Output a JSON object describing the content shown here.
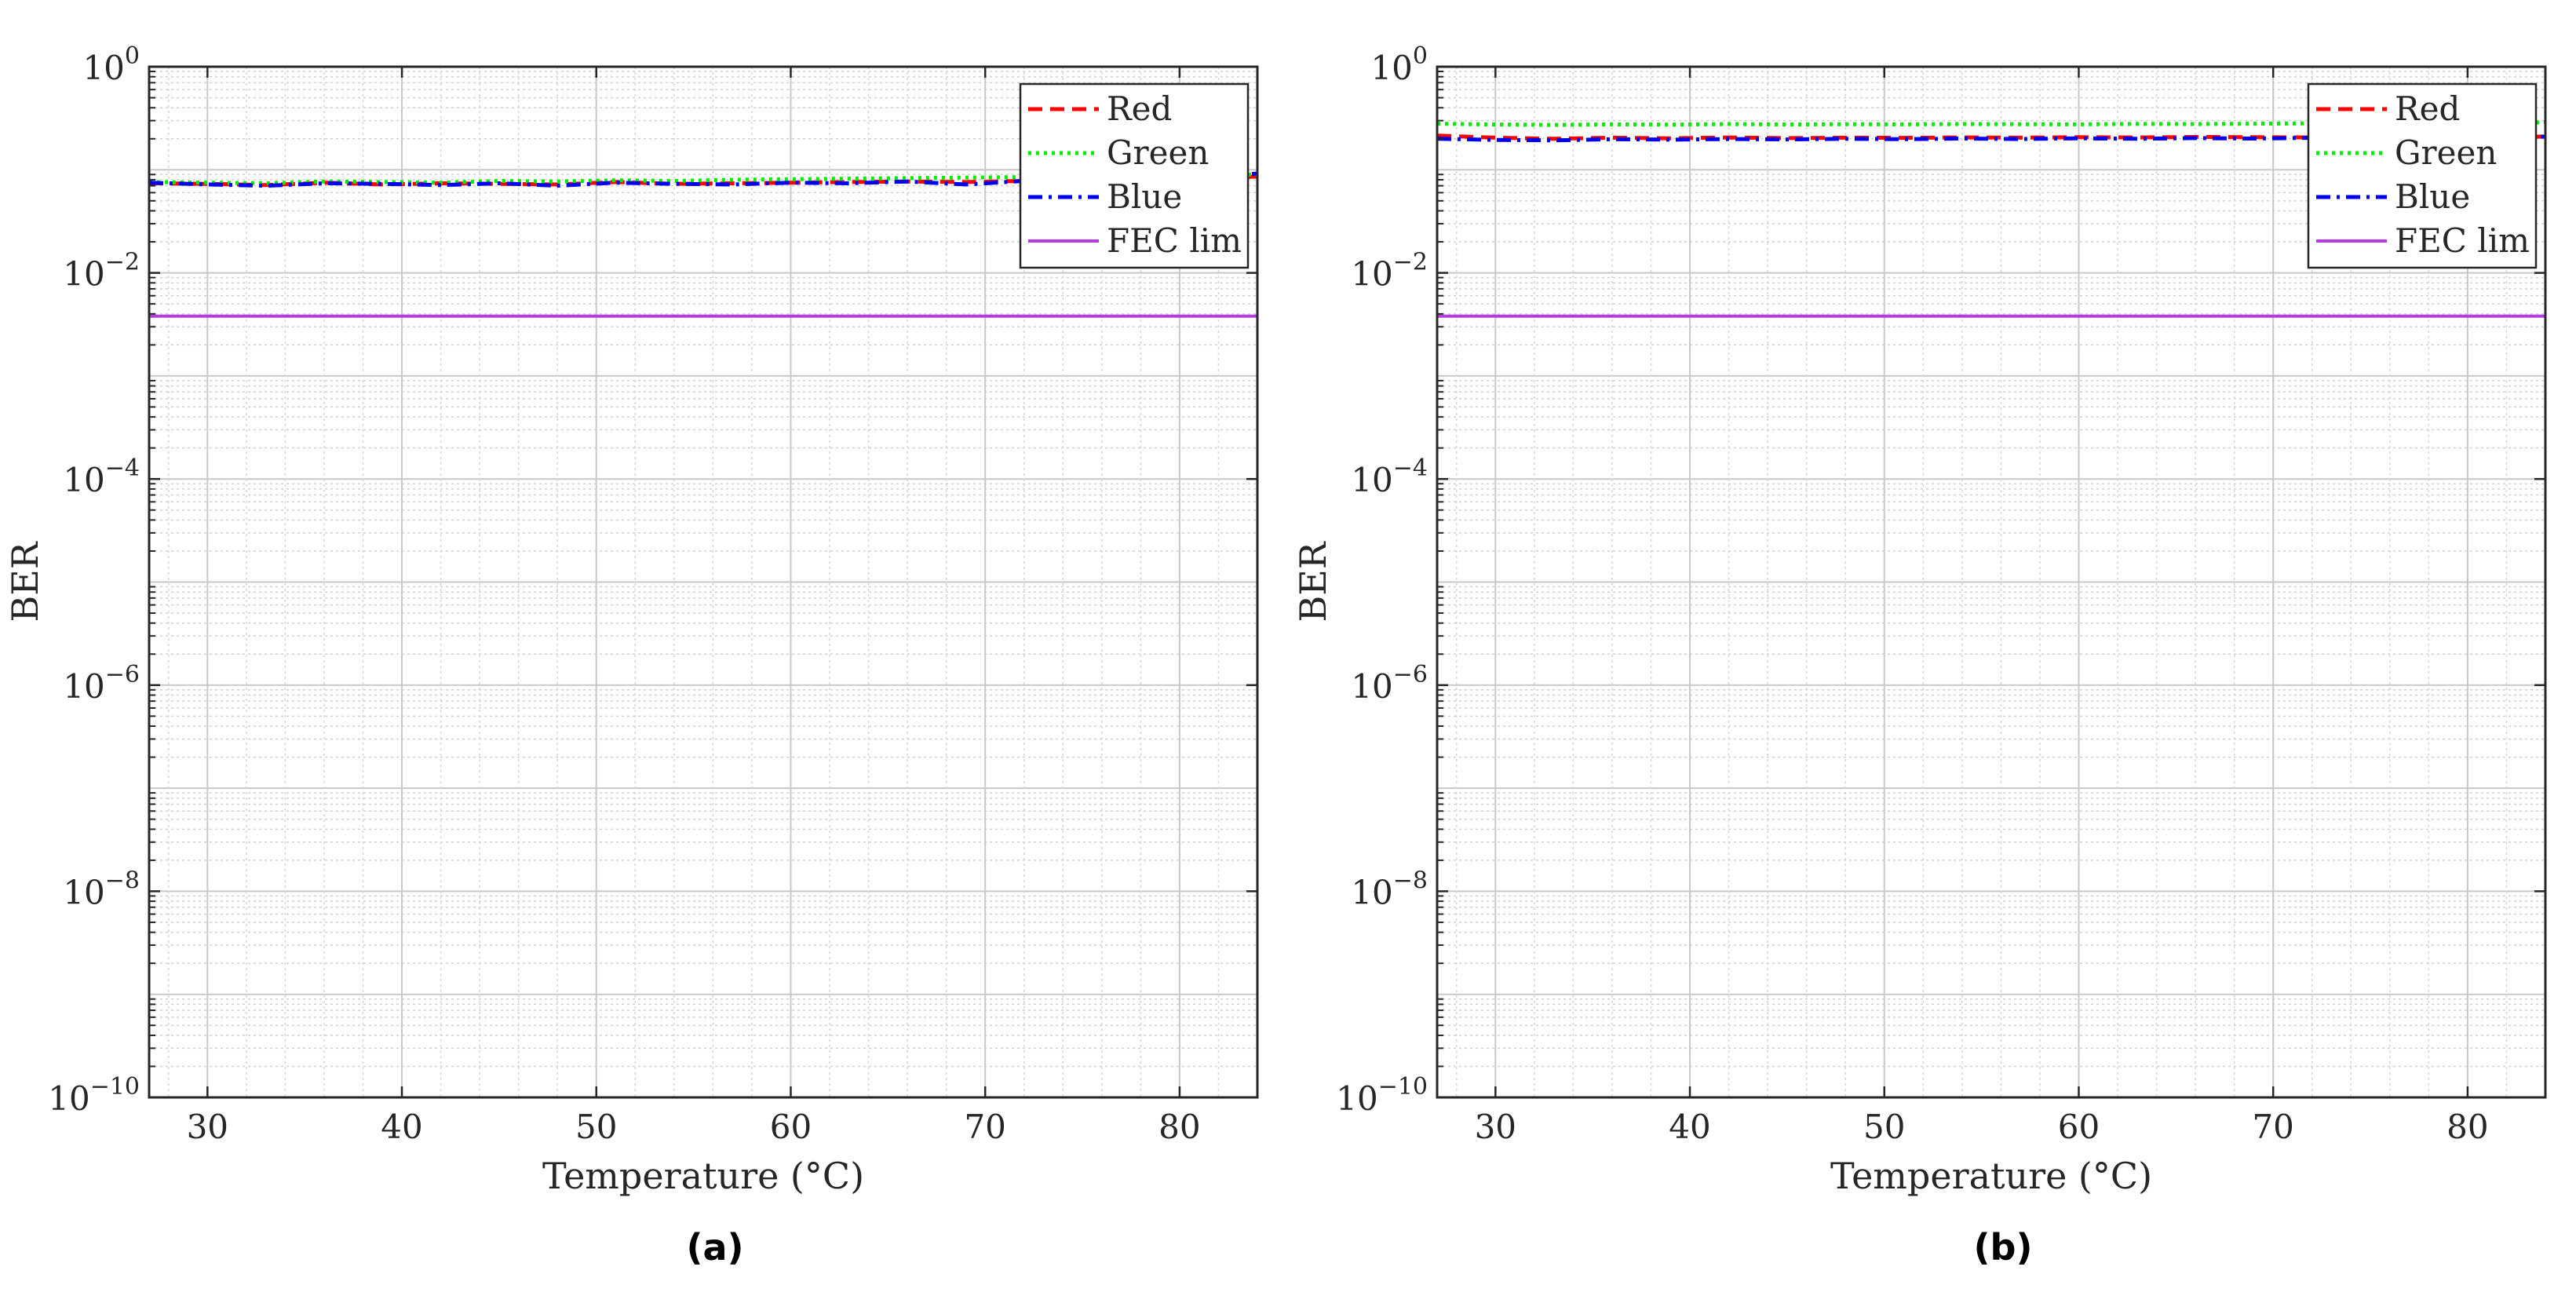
{
  "figure": {
    "panels": [
      {
        "caption": "(a)",
        "chart_data": {
          "type": "line",
          "title": "",
          "xlabel": "Temperature (°C)",
          "ylabel": "BER",
          "xlim": [
            27,
            84
          ],
          "ylim_log10": [
            -10,
            0
          ],
          "y_scale": "log",
          "grid": true,
          "legend_location": "top-right",
          "x_ticks": [
            30,
            40,
            50,
            60,
            70,
            80
          ],
          "y_ticks": [
            {
              "base": "10",
              "exp": "0"
            },
            {
              "base": "10",
              "exp": "−2"
            },
            {
              "base": "10",
              "exp": "−4"
            },
            {
              "base": "10",
              "exp": "−6"
            },
            {
              "base": "10",
              "exp": "−8"
            },
            {
              "base": "10",
              "exp": "−10"
            }
          ],
          "x": [
            27,
            30,
            33,
            36,
            39,
            42,
            45,
            48,
            51,
            54,
            57,
            60,
            63,
            66,
            69,
            72,
            75,
            78,
            81,
            84
          ],
          "series": [
            {
              "name": "Red",
              "color": "#ff0000",
              "style": "dashed",
              "values": [
                0.074,
                0.073,
                0.071,
                0.075,
                0.072,
                0.074,
                0.073,
                0.072,
                0.076,
                0.073,
                0.074,
                0.075,
                0.076,
                0.077,
                0.076,
                0.078,
                0.079,
                0.08,
                0.082,
                0.086
              ]
            },
            {
              "name": "Green",
              "color": "#00ee00",
              "style": "dotted",
              "values": [
                0.076,
                0.075,
                0.074,
                0.077,
                0.076,
                0.075,
                0.078,
                0.077,
                0.079,
                0.078,
                0.08,
                0.081,
                0.082,
                0.083,
                0.084,
                0.085,
                0.086,
                0.087,
                0.088,
                0.09
              ]
            },
            {
              "name": "Blue",
              "color": "#0000ee",
              "style": "dashdot",
              "values": [
                0.075,
                0.072,
                0.07,
                0.074,
                0.073,
                0.071,
                0.074,
                0.07,
                0.075,
                0.073,
                0.072,
                0.075,
                0.074,
                0.077,
                0.072,
                0.078,
                0.077,
                0.079,
                0.085,
                0.092
              ]
            },
            {
              "name": "FEC lim",
              "color": "#b43ce6",
              "style": "solid",
              "values": [
                0.0038,
                0.0038,
                0.0038,
                0.0038,
                0.0038,
                0.0038,
                0.0038,
                0.0038,
                0.0038,
                0.0038,
                0.0038,
                0.0038,
                0.0038,
                0.0038,
                0.0038,
                0.0038,
                0.0038,
                0.0038,
                0.0038,
                0.0038
              ]
            }
          ]
        }
      },
      {
        "caption": "(b)",
        "chart_data": {
          "type": "line",
          "title": "",
          "xlabel": "Temperature (°C)",
          "ylabel": "BER",
          "xlim": [
            27,
            84
          ],
          "ylim_log10": [
            -10,
            0
          ],
          "y_scale": "log",
          "grid": true,
          "legend_location": "top-right",
          "x_ticks": [
            30,
            40,
            50,
            60,
            70,
            80
          ],
          "y_ticks": [
            {
              "base": "10",
              "exp": "0"
            },
            {
              "base": "10",
              "exp": "−2"
            },
            {
              "base": "10",
              "exp": "−4"
            },
            {
              "base": "10",
              "exp": "−6"
            },
            {
              "base": "10",
              "exp": "−8"
            },
            {
              "base": "10",
              "exp": "−10"
            }
          ],
          "x": [
            27,
            30,
            33,
            36,
            39,
            42,
            45,
            48,
            51,
            54,
            57,
            60,
            63,
            66,
            69,
            72,
            75,
            78,
            81,
            84
          ],
          "series": [
            {
              "name": "Red",
              "color": "#ff0000",
              "style": "dashed",
              "values": [
                0.215,
                0.205,
                0.2,
                0.205,
                0.202,
                0.206,
                0.203,
                0.205,
                0.204,
                0.206,
                0.205,
                0.207,
                0.206,
                0.208,
                0.207,
                0.206,
                0.205,
                0.207,
                0.206,
                0.21
              ]
            },
            {
              "name": "Green",
              "color": "#00ee00",
              "style": "dotted",
              "values": [
                0.28,
                0.275,
                0.272,
                0.276,
                0.274,
                0.278,
                0.275,
                0.277,
                0.276,
                0.278,
                0.277,
                0.276,
                0.279,
                0.278,
                0.28,
                0.282,
                0.279,
                0.278,
                0.277,
                0.29
              ]
            },
            {
              "name": "Blue",
              "color": "#0000ee",
              "style": "dashdot",
              "values": [
                0.2,
                0.195,
                0.193,
                0.198,
                0.196,
                0.199,
                0.197,
                0.2,
                0.198,
                0.201,
                0.199,
                0.202,
                0.2,
                0.203,
                0.201,
                0.204,
                0.202,
                0.203,
                0.205,
                0.21
              ]
            },
            {
              "name": "FEC lim",
              "color": "#b43ce6",
              "style": "solid",
              "values": [
                0.0038,
                0.0038,
                0.0038,
                0.0038,
                0.0038,
                0.0038,
                0.0038,
                0.0038,
                0.0038,
                0.0038,
                0.0038,
                0.0038,
                0.0038,
                0.0038,
                0.0038,
                0.0038,
                0.0038,
                0.0038,
                0.0038,
                0.0038
              ]
            }
          ]
        }
      }
    ]
  }
}
